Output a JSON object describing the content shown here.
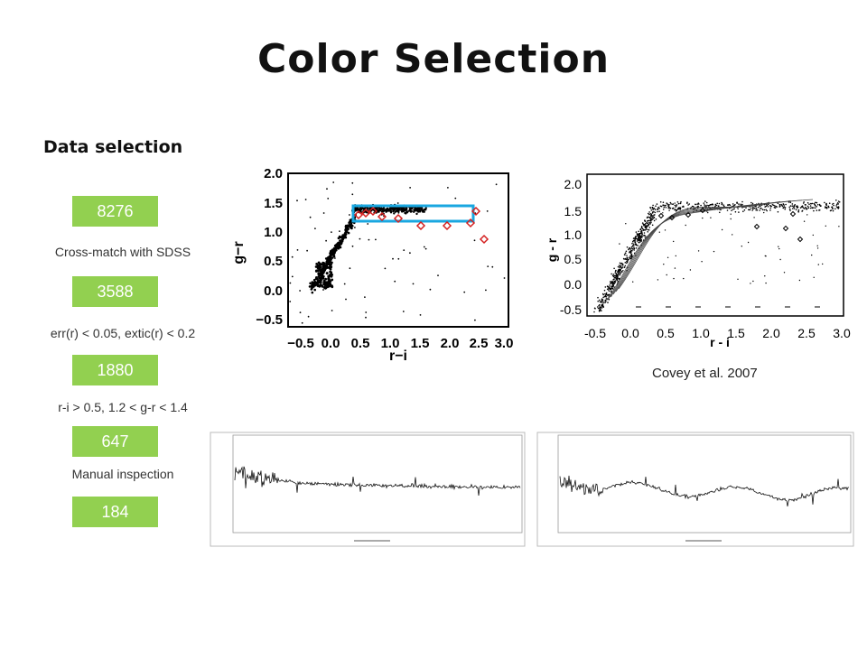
{
  "slide": {
    "title": "Color Selection",
    "subtitle": "Data selection",
    "steps": [
      {
        "count": "8276",
        "label": "Cross-match with SDSS"
      },
      {
        "count": "3588",
        "label": "err(r) < 0.05, extic(r) < 0.2"
      },
      {
        "count": "1880",
        "label": "r-i > 0.5,  1.2 < g-r < 1.4"
      },
      {
        "count": "647",
        "label": "Manual inspection"
      },
      {
        "count": "184",
        "label": ""
      }
    ],
    "caption": "Covey et al. 2007"
  },
  "colors": {
    "count_box": "#92d050",
    "selection_box": "#1aa7e0",
    "candidates": "#d42020"
  },
  "plot_left": {
    "xlabel": "r−i",
    "ylabel": "g−r",
    "xticks": [
      "−0.5",
      "0.0",
      "0.5",
      "1.0",
      "1.5",
      "2.0",
      "2.5",
      "3.0"
    ],
    "yticks": [
      "2.0",
      "1.5",
      "1.0",
      "0.5",
      "0.0",
      "−0.5"
    ]
  },
  "plot_right": {
    "xlabel": "r - i",
    "ylabel": "g - r",
    "xticks": [
      "-0.5",
      "0.0",
      "0.5",
      "1.0",
      "1.5",
      "2.0",
      "2.5",
      "3.0"
    ],
    "yticks": [
      "2.0",
      "1.5",
      "1.0",
      "0.5",
      "0.0",
      "-0.5"
    ]
  }
}
